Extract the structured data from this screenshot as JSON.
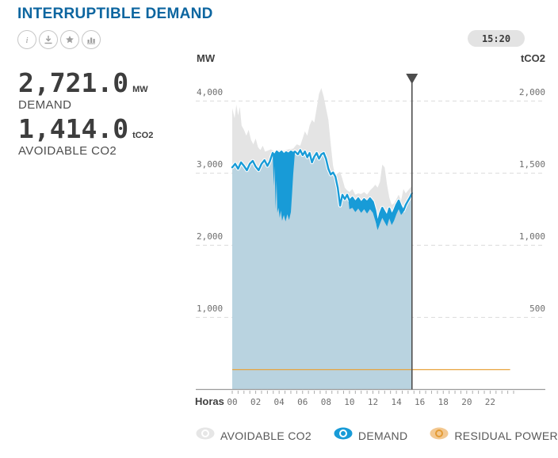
{
  "header": {
    "title": "INTERRUPTIBLE DEMAND",
    "action_icons": [
      "info-icon",
      "download-icon",
      "star-icon",
      "bar-chart-icon"
    ],
    "time_badge": "15:20"
  },
  "kpis": [
    {
      "value": "2,721.0",
      "unit": "MW",
      "label": "DEMAND"
    },
    {
      "value": "1,414.0",
      "unit": "tCO2",
      "label": "AVOIDABLE CO2"
    }
  ],
  "legend": [
    {
      "label": "AVOIDABLE CO2",
      "icon": "eye-icon",
      "color_main": "#e6e6e6",
      "color_ring": "#ffffff"
    },
    {
      "label": "DEMAND",
      "icon": "eye-icon",
      "color_main": "#189bd7",
      "color_ring": "#ffffff"
    },
    {
      "label": "RESIDUAL POWER",
      "icon": "eye-icon",
      "color_main": "#f3c891",
      "color_ring": "#e39b33"
    }
  ],
  "chart_data": {
    "type": "area",
    "x_unit": "hours",
    "x_range": [
      0,
      24
    ],
    "now_hour": 15.33,
    "now_label": "15:20",
    "grid": true,
    "left_axis": {
      "label": "MW",
      "tick_values": [
        4000,
        3000,
        2000,
        1000
      ],
      "tick_labels": [
        "4,000",
        "3,000",
        "2,000",
        "1,000"
      ],
      "range": [
        0,
        4360
      ]
    },
    "right_axis": {
      "label": "tCO2",
      "tick_values": [
        2000,
        1500,
        1000,
        500
      ],
      "tick_labels": [
        "2,000",
        "1,500",
        "1,000",
        "500"
      ],
      "range": [
        0,
        2180
      ]
    },
    "x_axis": {
      "label": "Horas",
      "tick_labels": [
        "00",
        "02",
        "04",
        "06",
        "08",
        "10",
        "12",
        "14",
        "16",
        "18",
        "20",
        "22"
      ],
      "tick_step_hours": 2
    },
    "series": {
      "avoidable_co2": {
        "name": "AVOIDABLE CO2",
        "axis": "right",
        "unit": "tCO2",
        "style": "area",
        "fill": "#e4e4e4",
        "points": [
          [
            0,
            1950
          ],
          [
            0.2,
            1880
          ],
          [
            0.35,
            1975
          ],
          [
            0.5,
            1900
          ],
          [
            0.65,
            1960
          ],
          [
            0.8,
            1830
          ],
          [
            1,
            1800
          ],
          [
            1.2,
            1760
          ],
          [
            1.4,
            1800
          ],
          [
            1.6,
            1730
          ],
          [
            1.8,
            1700
          ],
          [
            2,
            1740
          ],
          [
            2.2,
            1680
          ],
          [
            2.4,
            1660
          ],
          [
            2.6,
            1690
          ],
          [
            2.8,
            1650
          ],
          [
            3,
            1655
          ],
          [
            3.3,
            1665
          ],
          [
            3.6,
            1650
          ],
          [
            4,
            1660
          ],
          [
            4.4,
            1655
          ],
          [
            4.8,
            1665
          ],
          [
            5.2,
            1670
          ],
          [
            5.5,
            1700
          ],
          [
            5.8,
            1690
          ],
          [
            6,
            1740
          ],
          [
            6.2,
            1790
          ],
          [
            6.4,
            1760
          ],
          [
            6.6,
            1830
          ],
          [
            6.8,
            1870
          ],
          [
            7,
            1850
          ],
          [
            7.2,
            1950
          ],
          [
            7.4,
            2050
          ],
          [
            7.6,
            2090
          ],
          [
            7.8,
            2030
          ],
          [
            8,
            1950
          ],
          [
            8.2,
            1870
          ],
          [
            8.4,
            1700
          ],
          [
            8.6,
            1550
          ],
          [
            8.8,
            1480
          ],
          [
            9,
            1500
          ],
          [
            9.2,
            1510
          ],
          [
            9.4,
            1460
          ],
          [
            9.6,
            1400
          ],
          [
            9.8,
            1380
          ],
          [
            10,
            1370
          ],
          [
            10.25,
            1390
          ],
          [
            10.5,
            1350
          ],
          [
            10.75,
            1360
          ],
          [
            11,
            1355
          ],
          [
            11.25,
            1370
          ],
          [
            11.5,
            1350
          ],
          [
            11.75,
            1380
          ],
          [
            12,
            1400
          ],
          [
            12.2,
            1420
          ],
          [
            12.4,
            1400
          ],
          [
            12.6,
            1440
          ],
          [
            12.8,
            1560
          ],
          [
            13,
            1540
          ],
          [
            13.2,
            1420
          ],
          [
            13.4,
            1330
          ],
          [
            13.6,
            1280
          ],
          [
            13.8,
            1290
          ],
          [
            14,
            1320
          ],
          [
            14.2,
            1350
          ],
          [
            14.4,
            1310
          ],
          [
            14.6,
            1390
          ],
          [
            14.8,
            1360
          ],
          [
            15,
            1380
          ],
          [
            15.15,
            1395
          ],
          [
            15.33,
            1414
          ]
        ]
      },
      "demand": {
        "name": "DEMAND",
        "axis": "left",
        "unit": "MW",
        "style": "line+area",
        "line": "#189bd7",
        "fill": "#b9d3e0",
        "casing": "#ffffff",
        "points": [
          [
            0,
            3080
          ],
          [
            0.25,
            3130
          ],
          [
            0.5,
            3060
          ],
          [
            0.75,
            3150
          ],
          [
            1,
            3100
          ],
          [
            1.25,
            3040
          ],
          [
            1.5,
            3130
          ],
          [
            1.75,
            3170
          ],
          [
            2,
            3090
          ],
          [
            2.25,
            3040
          ],
          [
            2.5,
            3130
          ],
          [
            2.75,
            3180
          ],
          [
            3,
            3100
          ],
          [
            3.2,
            3160
          ],
          [
            3.45,
            3280
          ],
          [
            3.6,
            3250
          ],
          [
            3.8,
            3300
          ],
          [
            4,
            3270
          ],
          [
            4.2,
            3300
          ],
          [
            4.4,
            3260
          ],
          [
            4.6,
            3290
          ],
          [
            4.8,
            3270
          ],
          [
            5,
            3300
          ],
          [
            5.2,
            3280
          ],
          [
            5.35,
            3300
          ],
          [
            5.6,
            3260
          ],
          [
            5.8,
            3320
          ],
          [
            6,
            3250
          ],
          [
            6.2,
            3300
          ],
          [
            6.4,
            3220
          ],
          [
            6.6,
            3280
          ],
          [
            6.8,
            3150
          ],
          [
            7,
            3230
          ],
          [
            7.2,
            3280
          ],
          [
            7.4,
            3200
          ],
          [
            7.6,
            3260
          ],
          [
            7.8,
            3280
          ],
          [
            8,
            3200
          ],
          [
            8.2,
            3060
          ],
          [
            8.4,
            2980
          ],
          [
            8.6,
            3010
          ],
          [
            8.8,
            2950
          ],
          [
            9,
            2800
          ],
          [
            9.2,
            2550
          ],
          [
            9.4,
            2700
          ],
          [
            9.6,
            2640
          ],
          [
            9.8,
            2700
          ],
          [
            9.9,
            2660
          ],
          [
            10,
            2620
          ],
          [
            10.25,
            2660
          ],
          [
            10.5,
            2600
          ],
          [
            10.75,
            2650
          ],
          [
            11,
            2590
          ],
          [
            11.25,
            2640
          ],
          [
            11.5,
            2600
          ],
          [
            11.75,
            2650
          ],
          [
            12,
            2600
          ],
          [
            12.2,
            2480
          ],
          [
            12.4,
            2300
          ],
          [
            12.6,
            2440
          ],
          [
            12.8,
            2520
          ],
          [
            13,
            2460
          ],
          [
            13.2,
            2400
          ],
          [
            13.4,
            2510
          ],
          [
            13.6,
            2420
          ],
          [
            13.8,
            2480
          ],
          [
            14,
            2560
          ],
          [
            14.2,
            2620
          ],
          [
            14.4,
            2540
          ],
          [
            14.6,
            2480
          ],
          [
            14.8,
            2560
          ],
          [
            15,
            2620
          ],
          [
            15.15,
            2660
          ],
          [
            15.33,
            2721
          ]
        ],
        "interrupted_bands": [
          {
            "upper": [
              [
                3.45,
                3280
              ],
              [
                3.6,
                3250
              ],
              [
                3.8,
                3300
              ],
              [
                4,
                3270
              ],
              [
                4.2,
                3300
              ],
              [
                4.4,
                3260
              ],
              [
                4.6,
                3290
              ],
              [
                4.8,
                3270
              ],
              [
                5,
                3300
              ],
              [
                5.2,
                3280
              ],
              [
                5.35,
                3300
              ]
            ],
            "lower": [
              [
                3.45,
                3270
              ],
              [
                3.55,
                2820
              ],
              [
                3.62,
                3100
              ],
              [
                3.7,
                2500
              ],
              [
                3.78,
                2900
              ],
              [
                3.85,
                2450
              ],
              [
                3.95,
                2520
              ],
              [
                4.05,
                2380
              ],
              [
                4.15,
                2480
              ],
              [
                4.25,
                2340
              ],
              [
                4.4,
                2420
              ],
              [
                4.55,
                2330
              ],
              [
                4.7,
                2430
              ],
              [
                4.85,
                2350
              ],
              [
                5,
                2460
              ],
              [
                5.1,
                2700
              ],
              [
                5.2,
                2980
              ],
              [
                5.35,
                3290
              ]
            ]
          },
          {
            "upper": [
              [
                9.9,
                2660
              ],
              [
                10,
                2620
              ],
              [
                10.25,
                2660
              ],
              [
                10.5,
                2600
              ],
              [
                10.75,
                2650
              ],
              [
                11,
                2590
              ],
              [
                11.25,
                2640
              ],
              [
                11.5,
                2600
              ],
              [
                11.75,
                2650
              ],
              [
                12,
                2600
              ],
              [
                12.2,
                2480
              ],
              [
                12.4,
                2300
              ],
              [
                12.6,
                2440
              ],
              [
                12.8,
                2520
              ],
              [
                13,
                2460
              ],
              [
                13.2,
                2400
              ],
              [
                13.4,
                2510
              ],
              [
                13.6,
                2420
              ],
              [
                13.8,
                2480
              ],
              [
                14,
                2560
              ],
              [
                14.2,
                2620
              ],
              [
                14.4,
                2540
              ],
              [
                14.6,
                2480
              ]
            ],
            "lower": [
              [
                9.9,
                2640
              ],
              [
                10,
                2500
              ],
              [
                10.25,
                2520
              ],
              [
                10.5,
                2460
              ],
              [
                10.75,
                2510
              ],
              [
                11,
                2450
              ],
              [
                11.25,
                2500
              ],
              [
                11.5,
                2440
              ],
              [
                11.75,
                2500
              ],
              [
                12,
                2450
              ],
              [
                12.2,
                2340
              ],
              [
                12.4,
                2210
              ],
              [
                12.6,
                2300
              ],
              [
                12.8,
                2380
              ],
              [
                13,
                2320
              ],
              [
                13.2,
                2260
              ],
              [
                13.4,
                2370
              ],
              [
                13.6,
                2280
              ],
              [
                13.8,
                2340
              ],
              [
                14,
                2430
              ],
              [
                14.2,
                2500
              ],
              [
                14.4,
                2420
              ],
              [
                14.6,
                2460
              ]
            ]
          }
        ]
      },
      "residual_power": {
        "name": "RESIDUAL POWER",
        "axis": "left",
        "unit": "MW",
        "style": "line",
        "line": "#e8a33d",
        "points": [
          [
            0,
            275
          ],
          [
            23.7,
            275
          ]
        ]
      }
    },
    "colors": {
      "grid": "#dcdcdc",
      "axis_line": "#9b9b9b",
      "now_line": "#4d4d4d"
    }
  }
}
